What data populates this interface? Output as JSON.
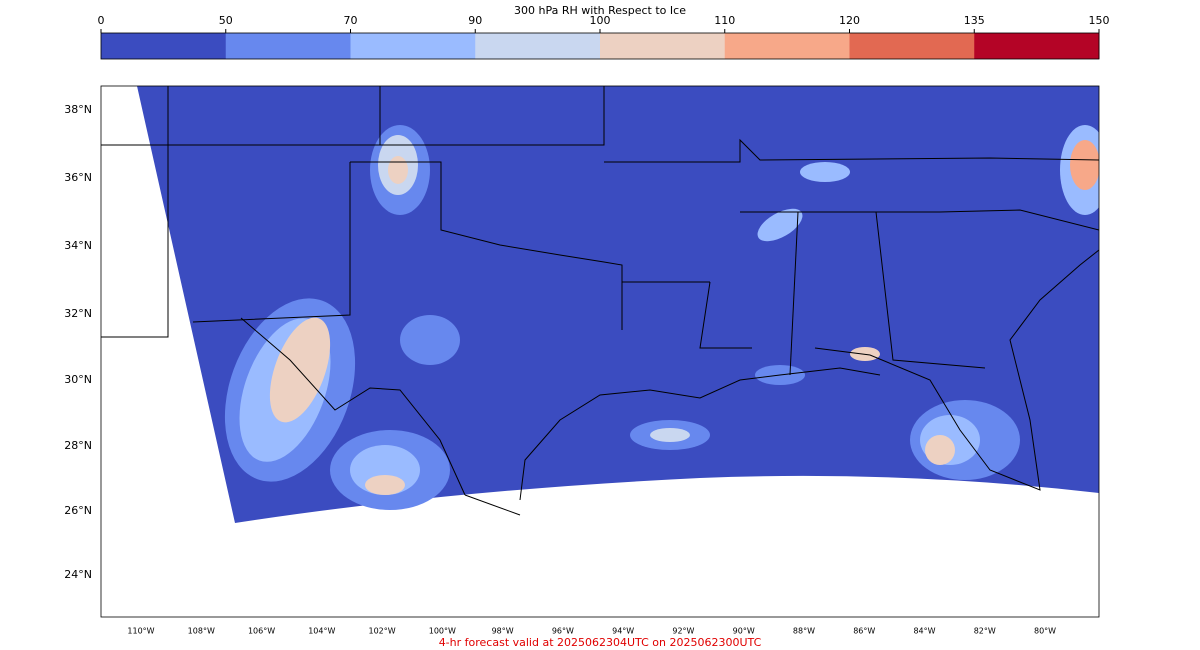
{
  "colorbar": {
    "title": "300 hPa RH with Respect to Ice",
    "ticks": [
      0,
      50,
      70,
      90,
      100,
      110,
      120,
      135,
      150
    ],
    "colors": [
      "#3b4cc0",
      "#6788ee",
      "#9abbff",
      "#c9d7f0",
      "#edd1c2",
      "#f7a889",
      "#e26952",
      "#b40426"
    ]
  },
  "map": {
    "lat_labels": [
      "38°N",
      "36°N",
      "34°N",
      "32°N",
      "30°N",
      "28°N",
      "26°N",
      "24°N"
    ],
    "lon_labels": [
      "110°W",
      "108°W",
      "106°W",
      "104°W",
      "102°W",
      "100°W",
      "98°W",
      "96°W",
      "94°W",
      "92°W",
      "90°W",
      "88°W",
      "86°W",
      "84°W",
      "82°W",
      "80°W"
    ]
  },
  "footer": "4-hr forecast valid at 2025062304UTC on 2025062300UTC"
}
